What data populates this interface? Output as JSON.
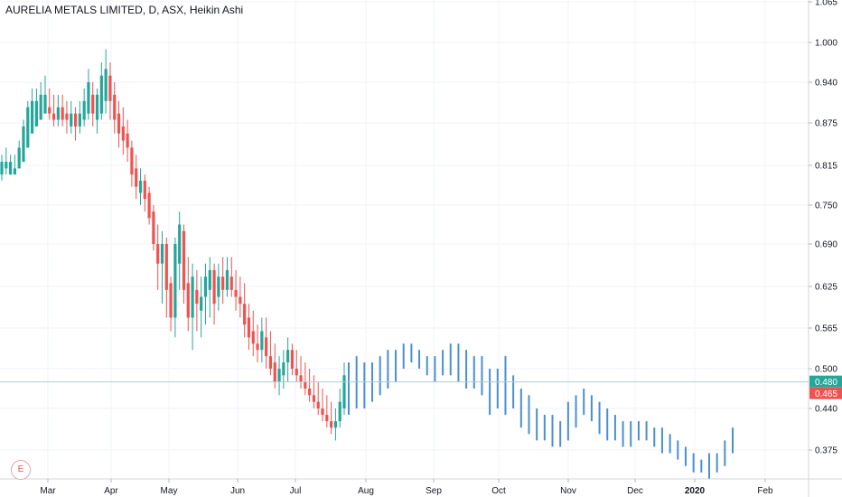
{
  "title": "AURELIA METALS LIMITED, D, ASX, Heikin Ashi",
  "badge": "E",
  "chart_data": {
    "type": "candlestick",
    "title": "AURELIA METALS LIMITED, D, ASX, Heikin Ashi",
    "xlabel": "",
    "ylabel": "",
    "ylim": [
      0.34,
      1.065
    ],
    "y_tick_labels": [
      "1.065",
      "1.000",
      "0.940",
      "0.875",
      "0.815",
      "0.750",
      "0.690",
      "0.625",
      "0.565",
      "0.500",
      "0.440",
      "0.375"
    ],
    "x_tick_labels": [
      "Mar",
      "Apr",
      "May",
      "Jun",
      "Jul",
      "Aug",
      "Sep",
      "Oct",
      "Nov",
      "Dec",
      "2020",
      "Feb"
    ],
    "price_labels": [
      {
        "value": 0.48,
        "text": "0.480",
        "color": "#26a69a"
      },
      {
        "value": 0.465,
        "text": "0.465",
        "color": "#ef5350"
      }
    ],
    "colors": {
      "up": "#26a69a",
      "down": "#ef5350",
      "projection": "#4a8fd1",
      "crosshair": "#9fd6cf"
    },
    "candles": [
      [
        0.79,
        0.83,
        0.8,
        0.82
      ],
      [
        0.8,
        0.84,
        0.81,
        0.82
      ],
      [
        0.8,
        0.83,
        0.8,
        0.82
      ],
      [
        0.8,
        0.83,
        0.8,
        0.81
      ],
      [
        0.81,
        0.85,
        0.81,
        0.84
      ],
      [
        0.82,
        0.88,
        0.82,
        0.87
      ],
      [
        0.84,
        0.91,
        0.84,
        0.9
      ],
      [
        0.86,
        0.93,
        0.86,
        0.91
      ],
      [
        0.87,
        0.93,
        0.87,
        0.91
      ],
      [
        0.88,
        0.94,
        0.88,
        0.92
      ],
      [
        0.89,
        0.95,
        0.89,
        0.92
      ],
      [
        0.88,
        0.93,
        0.9,
        0.89
      ],
      [
        0.87,
        0.92,
        0.89,
        0.88
      ],
      [
        0.87,
        0.92,
        0.88,
        0.9
      ],
      [
        0.87,
        0.92,
        0.9,
        0.88
      ],
      [
        0.86,
        0.91,
        0.89,
        0.88
      ],
      [
        0.86,
        0.91,
        0.87,
        0.89
      ],
      [
        0.85,
        0.9,
        0.89,
        0.87
      ],
      [
        0.86,
        0.91,
        0.87,
        0.89
      ],
      [
        0.87,
        0.93,
        0.88,
        0.91
      ],
      [
        0.88,
        0.96,
        0.89,
        0.94
      ],
      [
        0.87,
        0.94,
        0.92,
        0.89
      ],
      [
        0.86,
        0.93,
        0.88,
        0.92
      ],
      [
        0.88,
        0.97,
        0.89,
        0.95
      ],
      [
        0.89,
        0.99,
        0.91,
        0.96
      ],
      [
        0.88,
        0.97,
        0.95,
        0.91
      ],
      [
        0.86,
        0.94,
        0.92,
        0.88
      ],
      [
        0.84,
        0.91,
        0.89,
        0.86
      ],
      [
        0.83,
        0.9,
        0.87,
        0.85
      ],
      [
        0.82,
        0.88,
        0.86,
        0.84
      ],
      [
        0.78,
        0.85,
        0.84,
        0.8
      ],
      [
        0.76,
        0.83,
        0.81,
        0.78
      ],
      [
        0.75,
        0.81,
        0.77,
        0.79
      ],
      [
        0.74,
        0.8,
        0.79,
        0.76
      ],
      [
        0.72,
        0.78,
        0.77,
        0.73
      ],
      [
        0.68,
        0.75,
        0.74,
        0.69
      ],
      [
        0.62,
        0.72,
        0.69,
        0.66
      ],
      [
        0.6,
        0.71,
        0.66,
        0.69
      ],
      [
        0.58,
        0.7,
        0.69,
        0.62
      ],
      [
        0.56,
        0.64,
        0.63,
        0.58
      ],
      [
        0.55,
        0.7,
        0.58,
        0.69
      ],
      [
        0.62,
        0.74,
        0.66,
        0.72
      ],
      [
        0.6,
        0.72,
        0.71,
        0.62
      ],
      [
        0.56,
        0.67,
        0.63,
        0.58
      ],
      [
        0.53,
        0.66,
        0.58,
        0.64
      ],
      [
        0.56,
        0.65,
        0.62,
        0.6
      ],
      [
        0.55,
        0.64,
        0.59,
        0.61
      ],
      [
        0.57,
        0.66,
        0.61,
        0.64
      ],
      [
        0.58,
        0.67,
        0.62,
        0.65
      ],
      [
        0.57,
        0.66,
        0.65,
        0.6
      ],
      [
        0.59,
        0.66,
        0.61,
        0.64
      ],
      [
        0.6,
        0.67,
        0.64,
        0.62
      ],
      [
        0.61,
        0.67,
        0.62,
        0.65
      ],
      [
        0.61,
        0.67,
        0.64,
        0.62
      ],
      [
        0.59,
        0.65,
        0.62,
        0.61
      ],
      [
        0.58,
        0.64,
        0.61,
        0.6
      ],
      [
        0.55,
        0.63,
        0.6,
        0.57
      ],
      [
        0.53,
        0.6,
        0.58,
        0.55
      ],
      [
        0.52,
        0.59,
        0.56,
        0.54
      ],
      [
        0.51,
        0.57,
        0.54,
        0.53
      ],
      [
        0.51,
        0.58,
        0.53,
        0.56
      ],
      [
        0.5,
        0.58,
        0.55,
        0.52
      ],
      [
        0.49,
        0.56,
        0.52,
        0.5
      ],
      [
        0.47,
        0.54,
        0.51,
        0.48
      ],
      [
        0.46,
        0.52,
        0.48,
        0.5
      ],
      [
        0.47,
        0.53,
        0.49,
        0.51
      ],
      [
        0.48,
        0.55,
        0.51,
        0.53
      ],
      [
        0.49,
        0.54,
        0.53,
        0.5
      ],
      [
        0.48,
        0.53,
        0.5,
        0.49
      ],
      [
        0.47,
        0.52,
        0.49,
        0.48
      ],
      [
        0.46,
        0.51,
        0.48,
        0.47
      ],
      [
        0.45,
        0.5,
        0.47,
        0.46
      ],
      [
        0.44,
        0.49,
        0.46,
        0.45
      ],
      [
        0.43,
        0.48,
        0.45,
        0.44
      ],
      [
        0.42,
        0.47,
        0.44,
        0.43
      ],
      [
        0.41,
        0.46,
        0.43,
        0.42
      ],
      [
        0.4,
        0.45,
        0.42,
        0.41
      ],
      [
        0.39,
        0.44,
        0.41,
        0.42
      ],
      [
        0.41,
        0.47,
        0.42,
        0.45
      ],
      [
        0.43,
        0.51,
        0.44,
        0.49
      ]
    ],
    "projection_bars": [
      [
        0.43,
        0.51
      ],
      [
        0.44,
        0.52
      ],
      [
        0.44,
        0.51
      ],
      [
        0.45,
        0.51
      ],
      [
        0.46,
        0.52
      ],
      [
        0.47,
        0.53
      ],
      [
        0.48,
        0.53
      ],
      [
        0.5,
        0.54
      ],
      [
        0.51,
        0.54
      ],
      [
        0.5,
        0.53
      ],
      [
        0.49,
        0.52
      ],
      [
        0.48,
        0.52
      ],
      [
        0.49,
        0.53
      ],
      [
        0.49,
        0.54
      ],
      [
        0.48,
        0.54
      ],
      [
        0.47,
        0.53
      ],
      [
        0.47,
        0.52
      ],
      [
        0.46,
        0.52
      ],
      [
        0.43,
        0.5
      ],
      [
        0.44,
        0.5
      ],
      [
        0.43,
        0.52
      ],
      [
        0.44,
        0.49
      ],
      [
        0.41,
        0.47
      ],
      [
        0.4,
        0.46
      ],
      [
        0.39,
        0.44
      ],
      [
        0.39,
        0.43
      ],
      [
        0.38,
        0.43
      ],
      [
        0.38,
        0.42
      ],
      [
        0.39,
        0.45
      ],
      [
        0.41,
        0.46
      ],
      [
        0.43,
        0.47
      ],
      [
        0.42,
        0.46
      ],
      [
        0.4,
        0.45
      ],
      [
        0.39,
        0.44
      ],
      [
        0.39,
        0.43
      ],
      [
        0.38,
        0.42
      ],
      [
        0.38,
        0.42
      ],
      [
        0.39,
        0.42
      ],
      [
        0.39,
        0.42
      ],
      [
        0.38,
        0.41
      ],
      [
        0.37,
        0.41
      ],
      [
        0.37,
        0.4
      ],
      [
        0.36,
        0.39
      ],
      [
        0.35,
        0.38
      ],
      [
        0.34,
        0.37
      ],
      [
        0.34,
        0.36
      ],
      [
        0.33,
        0.37
      ],
      [
        0.34,
        0.37
      ],
      [
        0.35,
        0.39
      ],
      [
        0.37,
        0.41
      ]
    ]
  }
}
